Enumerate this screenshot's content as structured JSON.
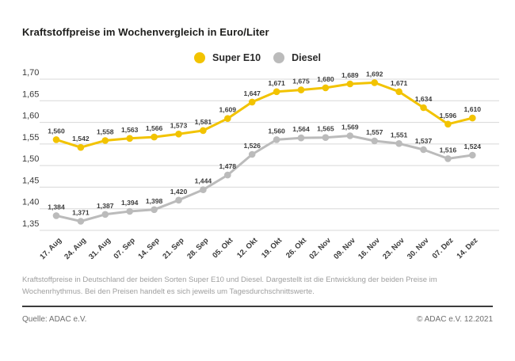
{
  "page": {
    "title": "Kraftstoffpreise im Wochenvergleich in Euro/Liter",
    "footnote": "Kraftstoffpreise in Deutschland der beiden Sorten Super E10 und Diesel. Dargestellt ist die Entwicklung der beiden Preise im Wochenrhythmus. Bei den Preisen handelt es sich jeweils um Tagesdurchschnittswerte.",
    "source": "Quelle: ADAC e.V.",
    "copyright": "© ADAC e.V. 12.2021"
  },
  "chart_data": {
    "type": "line",
    "title": "Kraftstoffpreise im Wochenvergleich in Euro/Liter",
    "unit": "Euro/Liter",
    "categories": [
      "17. Aug",
      "24. Aug",
      "31. Aug",
      "07. Sep",
      "14. Sep",
      "21. Sep",
      "28. Sep",
      "05. Okt",
      "12. Okt",
      "19. Okt",
      "26. Okt",
      "02. Nov",
      "09. Nov",
      "16. Nov",
      "23. Nov",
      "30. Nov",
      "07. Dez",
      "14. Dez"
    ],
    "series": [
      {
        "name": "Super E10",
        "color": "#F2C300",
        "values": [
          1.56,
          1.542,
          1.558,
          1.563,
          1.566,
          1.573,
          1.581,
          1.609,
          1.647,
          1.671,
          1.675,
          1.68,
          1.689,
          1.692,
          1.671,
          1.634,
          1.596,
          1.61
        ]
      },
      {
        "name": "Diesel",
        "color": "#BBBBBB",
        "values": [
          1.384,
          1.371,
          1.387,
          1.394,
          1.398,
          1.42,
          1.444,
          1.478,
          1.526,
          1.56,
          1.564,
          1.565,
          1.569,
          1.557,
          1.551,
          1.537,
          1.516,
          1.524
        ]
      }
    ],
    "ylim": [
      1.35,
      1.7
    ],
    "ytick_step": 0.05,
    "decimal_separator": ",",
    "grid": true,
    "legend_position": "top-center",
    "point_labels": true
  },
  "colors": {
    "grid": "#D8D8D8",
    "axis_text": "#3A3A3A",
    "point_label_text": "#3C3C3C",
    "footnote_text": "#9E9E9E",
    "separator": "#3C3C3C",
    "source_text": "#6E6E6E",
    "background": "#FFFFFF"
  }
}
